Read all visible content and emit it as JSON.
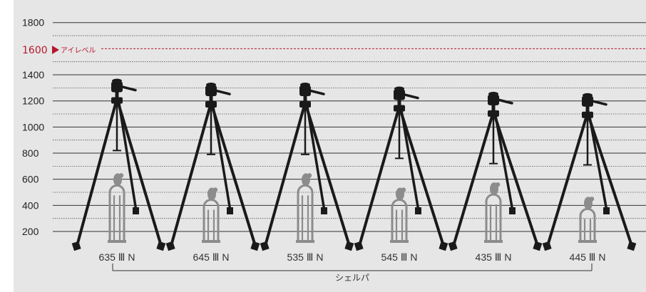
{
  "axis": {
    "ticks": [
      200,
      400,
      600,
      800,
      1000,
      1200,
      1400,
      1600,
      1800
    ],
    "eye_level": {
      "value": 1600,
      "label": "アイレベル",
      "color": "#b5192f"
    }
  },
  "tripods": [
    {
      "model": "635 Ⅲ N",
      "max_height": 1370,
      "column_bottom": 820,
      "person_height": 640
    },
    {
      "model": "645 Ⅲ N",
      "max_height": 1340,
      "column_bottom": 790,
      "person_height": 530
    },
    {
      "model": "535 Ⅲ N",
      "max_height": 1340,
      "column_bottom": 790,
      "person_height": 640
    },
    {
      "model": "545 Ⅲ N",
      "max_height": 1310,
      "column_bottom": 760,
      "person_height": 530
    },
    {
      "model": "435 Ⅲ N",
      "max_height": 1270,
      "column_bottom": 720,
      "person_height": 570
    },
    {
      "model": "445 Ⅲ N",
      "max_height": 1260,
      "column_bottom": 710,
      "person_height": 460
    }
  ],
  "shelf_label": "シェルパ",
  "colors": {
    "tripod": "#1a1a1a",
    "person": "#8c8c8c",
    "grid": "#333333",
    "background": "#e6e6e6"
  }
}
